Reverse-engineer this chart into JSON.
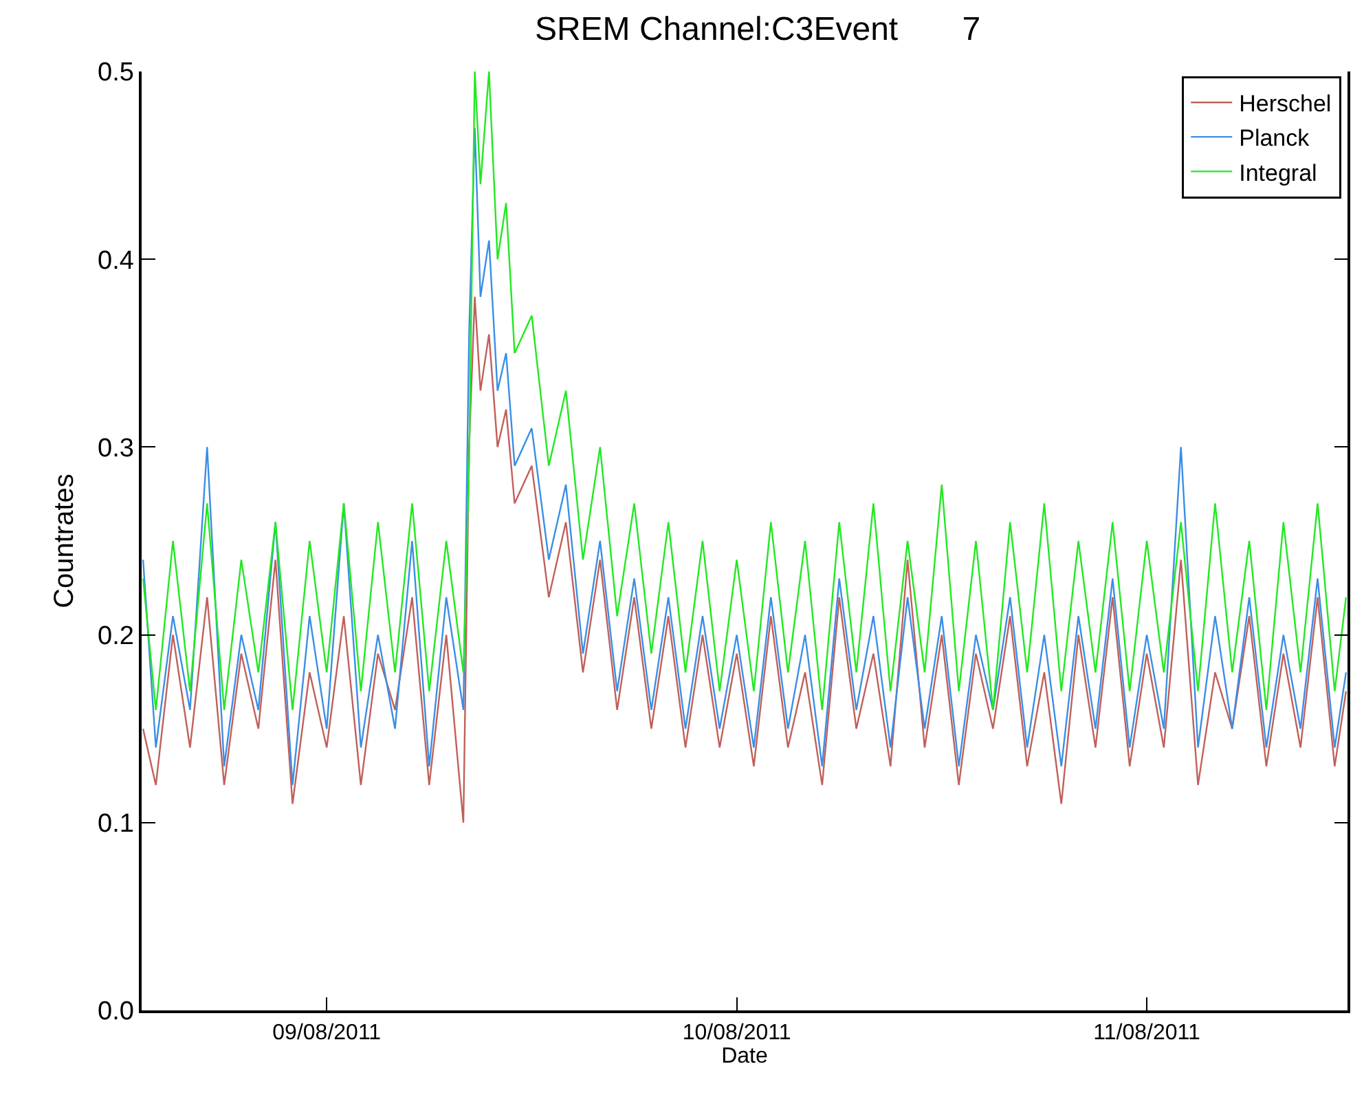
{
  "chart_data": {
    "type": "line",
    "title": "SREM Channel:C3Event       7",
    "xlabel": "Date",
    "ylabel": "Countrates",
    "x": [
      "2011-08-08T13:15",
      "2011-08-08T14:00",
      "2011-08-08T15:00",
      "2011-08-08T16:00",
      "2011-08-08T17:00",
      "2011-08-08T18:00",
      "2011-08-08T19:00",
      "2011-08-08T20:00",
      "2011-08-08T21:00",
      "2011-08-08T22:00",
      "2011-08-08T23:00",
      "2011-08-09T00:00",
      "2011-08-09T01:00",
      "2011-08-09T02:00",
      "2011-08-09T03:00",
      "2011-08-09T04:00",
      "2011-08-09T05:00",
      "2011-08-09T06:00",
      "2011-08-09T07:00",
      "2011-08-09T08:00",
      "2011-08-09T08:20",
      "2011-08-09T08:40",
      "2011-08-09T09:00",
      "2011-08-09T09:30",
      "2011-08-09T10:00",
      "2011-08-09T10:30",
      "2011-08-09T11:00",
      "2011-08-09T12:00",
      "2011-08-09T13:00",
      "2011-08-09T14:00",
      "2011-08-09T15:00",
      "2011-08-09T16:00",
      "2011-08-09T17:00",
      "2011-08-09T18:00",
      "2011-08-09T19:00",
      "2011-08-09T20:00",
      "2011-08-09T21:00",
      "2011-08-09T22:00",
      "2011-08-09T23:00",
      "2011-08-10T00:00",
      "2011-08-10T01:00",
      "2011-08-10T02:00",
      "2011-08-10T03:00",
      "2011-08-10T04:00",
      "2011-08-10T05:00",
      "2011-08-10T06:00",
      "2011-08-10T07:00",
      "2011-08-10T08:00",
      "2011-08-10T09:00",
      "2011-08-10T10:00",
      "2011-08-10T11:00",
      "2011-08-10T12:00",
      "2011-08-10T13:00",
      "2011-08-10T14:00",
      "2011-08-10T15:00",
      "2011-08-10T16:00",
      "2011-08-10T17:00",
      "2011-08-10T18:00",
      "2011-08-10T19:00",
      "2011-08-10T20:00",
      "2011-08-10T21:00",
      "2011-08-10T22:00",
      "2011-08-10T23:00",
      "2011-08-11T00:00",
      "2011-08-11T01:00",
      "2011-08-11T02:00",
      "2011-08-11T03:00",
      "2011-08-11T04:00",
      "2011-08-11T05:00",
      "2011-08-11T06:00",
      "2011-08-11T07:00",
      "2011-08-11T08:00",
      "2011-08-11T09:00",
      "2011-08-11T10:00",
      "2011-08-11T11:00",
      "2011-08-11T11:40"
    ],
    "series": [
      {
        "name": "Herschel",
        "color": "#c0605a",
        "values": [
          0.15,
          0.12,
          0.2,
          0.14,
          0.22,
          0.12,
          0.19,
          0.15,
          0.24,
          0.11,
          0.18,
          0.14,
          0.21,
          0.12,
          0.19,
          0.16,
          0.22,
          0.12,
          0.2,
          0.1,
          0.3,
          0.38,
          0.33,
          0.36,
          0.3,
          0.32,
          0.27,
          0.29,
          0.22,
          0.26,
          0.18,
          0.24,
          0.16,
          0.22,
          0.15,
          0.21,
          0.14,
          0.2,
          0.14,
          0.19,
          0.13,
          0.21,
          0.14,
          0.18,
          0.12,
          0.22,
          0.15,
          0.19,
          0.13,
          0.24,
          0.14,
          0.2,
          0.12,
          0.19,
          0.15,
          0.21,
          0.13,
          0.18,
          0.11,
          0.2,
          0.14,
          0.22,
          0.13,
          0.19,
          0.14,
          0.24,
          0.12,
          0.18,
          0.15,
          0.21,
          0.13,
          0.19,
          0.14,
          0.22,
          0.13,
          0.17
        ]
      },
      {
        "name": "Planck",
        "color": "#3a8ee6",
        "values": [
          0.24,
          0.14,
          0.21,
          0.16,
          0.3,
          0.13,
          0.2,
          0.16,
          0.26,
          0.12,
          0.21,
          0.15,
          0.27,
          0.14,
          0.2,
          0.15,
          0.25,
          0.13,
          0.22,
          0.16,
          0.36,
          0.47,
          0.38,
          0.41,
          0.33,
          0.35,
          0.29,
          0.31,
          0.24,
          0.28,
          0.19,
          0.25,
          0.17,
          0.23,
          0.16,
          0.22,
          0.15,
          0.21,
          0.15,
          0.2,
          0.14,
          0.22,
          0.15,
          0.2,
          0.13,
          0.23,
          0.16,
          0.21,
          0.14,
          0.22,
          0.15,
          0.21,
          0.13,
          0.2,
          0.16,
          0.22,
          0.14,
          0.2,
          0.13,
          0.21,
          0.15,
          0.23,
          0.14,
          0.2,
          0.15,
          0.3,
          0.14,
          0.21,
          0.15,
          0.22,
          0.14,
          0.2,
          0.15,
          0.23,
          0.14,
          0.18
        ]
      },
      {
        "name": "Integral",
        "color": "#22e822",
        "values": [
          0.23,
          0.16,
          0.25,
          0.17,
          0.27,
          0.16,
          0.24,
          0.18,
          0.26,
          0.16,
          0.25,
          0.18,
          0.27,
          0.17,
          0.26,
          0.18,
          0.27,
          0.17,
          0.25,
          0.18,
          0.29,
          0.5,
          0.44,
          0.5,
          0.4,
          0.43,
          0.35,
          0.37,
          0.29,
          0.33,
          0.24,
          0.3,
          0.21,
          0.27,
          0.19,
          0.26,
          0.18,
          0.25,
          0.17,
          0.24,
          0.17,
          0.26,
          0.18,
          0.25,
          0.16,
          0.26,
          0.18,
          0.27,
          0.17,
          0.25,
          0.18,
          0.28,
          0.17,
          0.25,
          0.16,
          0.26,
          0.18,
          0.27,
          0.17,
          0.25,
          0.18,
          0.26,
          0.17,
          0.25,
          0.18,
          0.26,
          0.17,
          0.27,
          0.18,
          0.25,
          0.16,
          0.26,
          0.18,
          0.27,
          0.17,
          0.22
        ]
      }
    ],
    "xlim": [
      "2011-08-08T13:10",
      "2011-08-11T11:45"
    ],
    "xticks": [
      {
        "value": "2011-08-09",
        "label": "09/08/2011"
      },
      {
        "value": "2011-08-10",
        "label": "10/08/2011"
      },
      {
        "value": "2011-08-11",
        "label": "11/08/2011"
      }
    ],
    "ylim": [
      0,
      0.5
    ],
    "yticks": [
      {
        "value": 0,
        "label": "0.0"
      },
      {
        "value": 0.1,
        "label": "0.1"
      },
      {
        "value": 0.2,
        "label": "0.2"
      },
      {
        "value": 0.3,
        "label": "0.3"
      },
      {
        "value": 0.4,
        "label": "0.4"
      },
      {
        "value": 0.5,
        "label": "0.5"
      }
    ],
    "grid": false,
    "legend": "top right",
    "marker": "none",
    "line_style": "solid"
  }
}
